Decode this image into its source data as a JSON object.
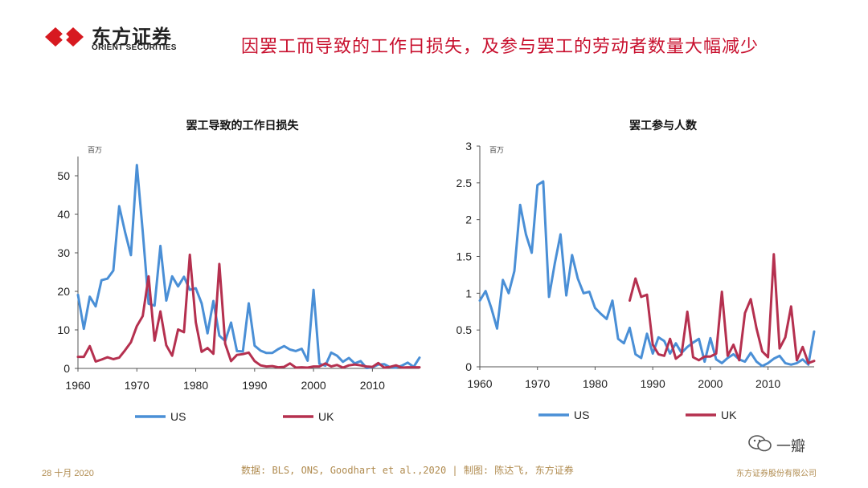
{
  "brand": {
    "name_cn": "东方证券",
    "name_en": "ORIENT SECURITIES",
    "logo_color": "#d71920"
  },
  "headline": "因罢工而导致的工作日损失，及参与罢工的劳动者数量大幅减少",
  "colors": {
    "US": "#4a8fd6",
    "UK": "#b5304f",
    "headline": "#c8102e",
    "footer": "#b08b4f"
  },
  "chart_data": [
    {
      "type": "line",
      "title": "罢工导致的工作日损失",
      "unit_label": "百万",
      "xlabel": "",
      "ylabel": "",
      "xlim": [
        1960,
        2018
      ],
      "ylim": [
        0,
        55
      ],
      "xticks": [
        1960,
        1970,
        1980,
        1990,
        2000,
        2010
      ],
      "yticks": [
        0,
        10,
        20,
        30,
        40,
        50
      ],
      "legend": "bottom",
      "series": [
        {
          "name": "US",
          "x": [
            1960,
            1961,
            1962,
            1963,
            1964,
            1965,
            1966,
            1967,
            1968,
            1969,
            1970,
            1971,
            1972,
            1973,
            1974,
            1975,
            1976,
            1977,
            1978,
            1979,
            1980,
            1981,
            1982,
            1983,
            1984,
            1985,
            1986,
            1987,
            1988,
            1989,
            1990,
            1991,
            1992,
            1993,
            1994,
            1995,
            1996,
            1997,
            1998,
            1999,
            2000,
            2001,
            2002,
            2003,
            2004,
            2005,
            2006,
            2007,
            2008,
            2009,
            2010,
            2011,
            2012,
            2013,
            2014,
            2015,
            2016,
            2017,
            2018
          ],
          "values": [
            19.1,
            10.3,
            18.6,
            16.1,
            22.9,
            23.3,
            25.4,
            42.1,
            35.4,
            29.4,
            52.8,
            35.5,
            16.8,
            16.3,
            31.8,
            17.6,
            23.9,
            21.3,
            23.8,
            20.4,
            20.8,
            16.9,
            9.1,
            17.5,
            8.5,
            7.1,
            11.9,
            4.5,
            4.4,
            16.9,
            5.9,
            4.6,
            4.0,
            4.0,
            5.0,
            5.8,
            4.9,
            4.5,
            5.1,
            2.0,
            20.4,
            1.2,
            0.7,
            4.1,
            3.3,
            1.7,
            2.7,
            1.3,
            1.9,
            0.1,
            0.3,
            1.0,
            1.1,
            0.3,
            0.2,
            0.7,
            1.5,
            0.4,
            2.8
          ]
        },
        {
          "name": "UK",
          "x": [
            1960,
            1961,
            1962,
            1963,
            1964,
            1965,
            1966,
            1967,
            1968,
            1969,
            1970,
            1971,
            1972,
            1973,
            1974,
            1975,
            1976,
            1977,
            1978,
            1979,
            1980,
            1981,
            1982,
            1983,
            1984,
            1985,
            1986,
            1987,
            1988,
            1989,
            1990,
            1991,
            1992,
            1993,
            1994,
            1995,
            1996,
            1997,
            1998,
            1999,
            2000,
            2001,
            2002,
            2003,
            2004,
            2005,
            2006,
            2007,
            2008,
            2009,
            2010,
            2011,
            2012,
            2013,
            2014,
            2015,
            2016,
            2017,
            2018
          ],
          "values": [
            3.0,
            3.0,
            5.8,
            1.8,
            2.3,
            2.9,
            2.4,
            2.8,
            4.7,
            6.8,
            11.0,
            13.6,
            23.9,
            7.2,
            14.8,
            6.0,
            3.3,
            10.1,
            9.4,
            29.5,
            12.0,
            4.3,
            5.3,
            3.8,
            27.1,
            6.4,
            1.9,
            3.5,
            3.7,
            4.1,
            1.9,
            0.8,
            0.5,
            0.6,
            0.3,
            0.4,
            1.3,
            0.2,
            0.3,
            0.2,
            0.5,
            0.5,
            1.3,
            0.5,
            0.9,
            0.2,
            0.8,
            1.0,
            0.8,
            0.5,
            0.4,
            1.4,
            0.2,
            0.4,
            0.8,
            0.2,
            0.3,
            0.3,
            0.3
          ]
        }
      ],
      "legend_labels": [
        "US",
        "UK"
      ]
    },
    {
      "type": "line",
      "title": "罢工参与人数",
      "unit_label": "百万",
      "xlabel": "",
      "ylabel": "",
      "xlim": [
        1960,
        2018
      ],
      "ylim": [
        0,
        3
      ],
      "xticks": [
        1960,
        1970,
        1980,
        1990,
        2000,
        2010
      ],
      "yticks": [
        "0",
        "0.5",
        "1",
        "1.5",
        "2",
        "2.5",
        "3"
      ],
      "legend": "bottom",
      "series": [
        {
          "name": "US",
          "x": [
            1960,
            1961,
            1962,
            1963,
            1964,
            1965,
            1966,
            1967,
            1968,
            1969,
            1970,
            1971,
            1972,
            1973,
            1974,
            1975,
            1976,
            1977,
            1978,
            1979,
            1980,
            1981,
            1982,
            1983,
            1984,
            1985,
            1986,
            1987,
            1988,
            1989,
            1990,
            1991,
            1992,
            1993,
            1994,
            1995,
            1996,
            1997,
            1998,
            1999,
            2000,
            2001,
            2002,
            2003,
            2004,
            2005,
            2006,
            2007,
            2008,
            2009,
            2010,
            2011,
            2012,
            2013,
            2014,
            2015,
            2016,
            2017,
            2018
          ],
          "values": [
            0.9,
            1.03,
            0.8,
            0.52,
            1.18,
            1.0,
            1.3,
            2.2,
            1.8,
            1.55,
            2.47,
            2.52,
            0.95,
            1.4,
            1.8,
            0.97,
            1.52,
            1.2,
            1.0,
            1.02,
            0.8,
            0.72,
            0.65,
            0.9,
            0.38,
            0.32,
            0.53,
            0.17,
            0.12,
            0.45,
            0.18,
            0.4,
            0.35,
            0.18,
            0.32,
            0.19,
            0.27,
            0.33,
            0.38,
            0.07,
            0.39,
            0.1,
            0.05,
            0.12,
            0.17,
            0.1,
            0.07,
            0.19,
            0.07,
            0.01,
            0.05,
            0.11,
            0.15,
            0.05,
            0.03,
            0.05,
            0.1,
            0.03,
            0.48
          ]
        },
        {
          "name": "UK",
          "x": [
            1986,
            1987,
            1988,
            1989,
            1990,
            1991,
            1992,
            1993,
            1994,
            1995,
            1996,
            1997,
            1998,
            1999,
            2000,
            2001,
            2002,
            2003,
            2004,
            2005,
            2006,
            2007,
            2008,
            2009,
            2010,
            2011,
            2012,
            2013,
            2014,
            2015,
            2016,
            2017,
            2018
          ],
          "values": [
            0.9,
            1.2,
            0.95,
            0.98,
            0.3,
            0.17,
            0.15,
            0.38,
            0.11,
            0.17,
            0.75,
            0.13,
            0.09,
            0.14,
            0.14,
            0.18,
            1.02,
            0.15,
            0.3,
            0.09,
            0.73,
            0.92,
            0.52,
            0.21,
            0.13,
            1.53,
            0.25,
            0.4,
            0.82,
            0.09,
            0.27,
            0.05,
            0.08
          ]
        }
      ],
      "legend_labels": [
        "US",
        "UK"
      ]
    }
  ],
  "footer": {
    "date": "28 十月 2020",
    "source": "数据: BLS, ONS, Goodhart et al.,2020 | 制图: 陈达飞, 东方证券",
    "company": "东方证券股份有限公司",
    "watermark": "一瓣"
  }
}
